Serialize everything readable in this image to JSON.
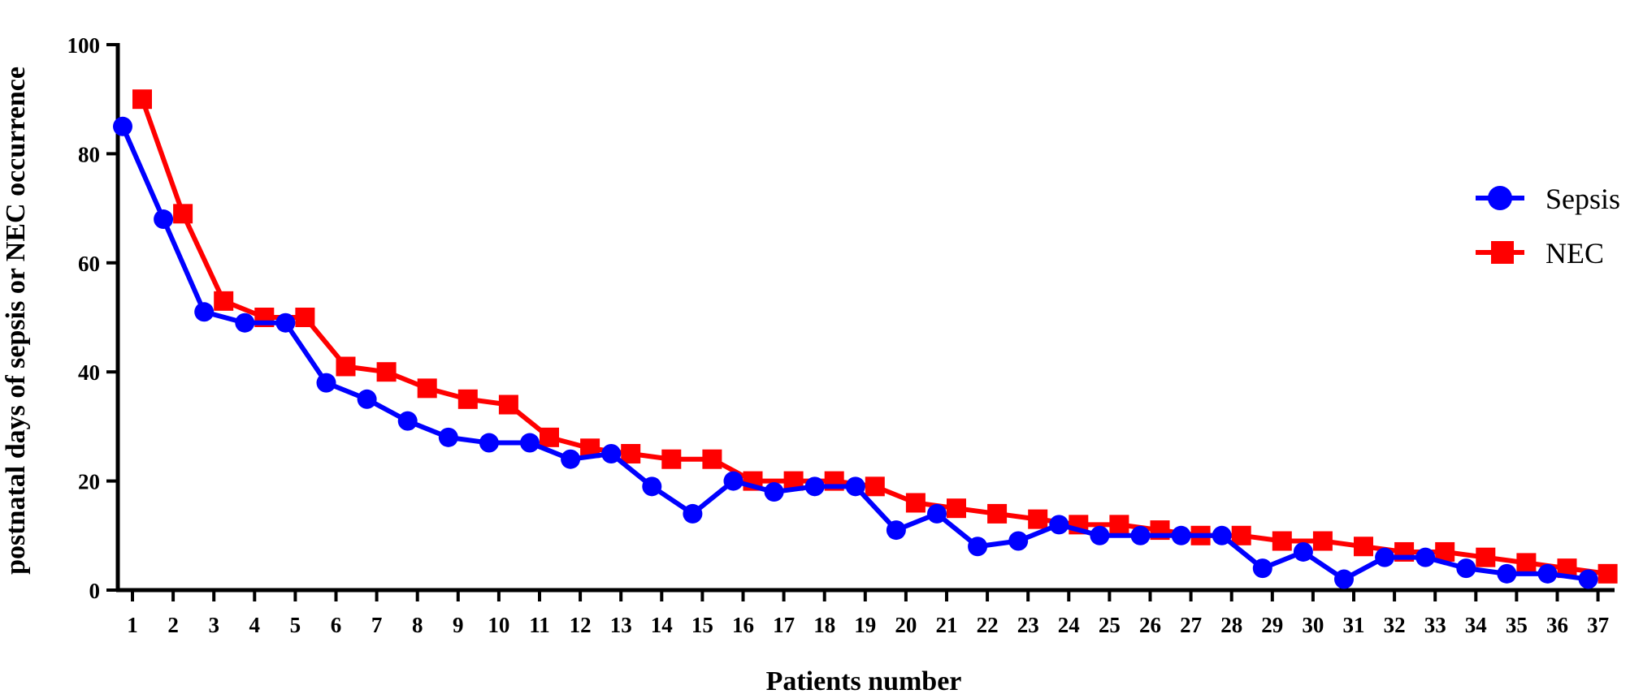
{
  "chart_data": {
    "type": "line",
    "xlabel": "Patients number",
    "ylabel": "postnatal days of sepsis or NEC occurrence",
    "ylim": [
      0,
      100
    ],
    "yticks": [
      0,
      20,
      40,
      60,
      80,
      100
    ],
    "categories": [
      "1",
      "2",
      "3",
      "4",
      "5",
      "6",
      "7",
      "8",
      "9",
      "10",
      "11",
      "12",
      "13",
      "14",
      "15",
      "16",
      "17",
      "18",
      "19",
      "20",
      "21",
      "22",
      "23",
      "24",
      "25",
      "26",
      "27",
      "28",
      "29",
      "30",
      "31",
      "32",
      "33",
      "34",
      "35",
      "36",
      "37"
    ],
    "legend_position": "right",
    "grid": false,
    "series": [
      {
        "name": "Sepsis",
        "color": "#0000ff",
        "marker": "circle",
        "values": [
          85,
          68,
          51,
          49,
          49,
          38,
          35,
          31,
          28,
          27,
          27,
          24,
          25,
          19,
          14,
          20,
          18,
          19,
          19,
          11,
          14,
          8,
          9,
          12,
          10,
          10,
          10,
          10,
          4,
          7,
          2,
          6,
          6,
          4,
          3,
          3,
          2
        ]
      },
      {
        "name": "NEC",
        "color": "#ff0000",
        "marker": "square",
        "values": [
          90,
          69,
          53,
          50,
          50,
          41,
          40,
          37,
          35,
          34,
          28,
          26,
          25,
          24,
          24,
          20,
          20,
          20,
          19,
          16,
          15,
          14,
          13,
          12,
          12,
          11,
          10,
          10,
          9,
          9,
          8,
          7,
          7,
          6,
          5,
          4,
          3
        ]
      }
    ]
  }
}
